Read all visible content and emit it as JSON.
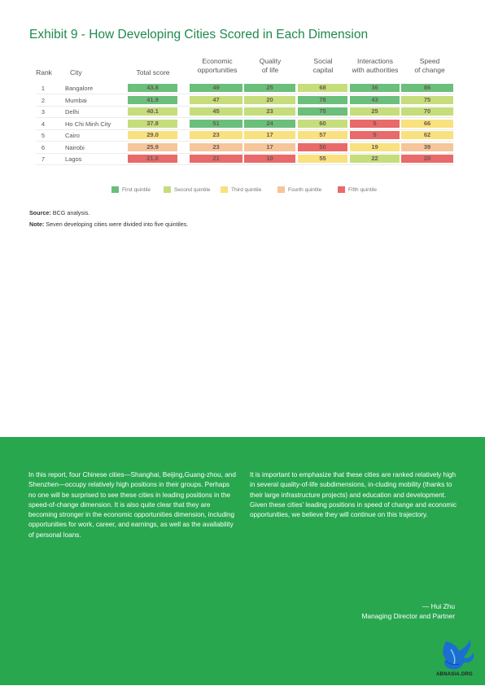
{
  "exhibit": {
    "title": "Exhibit 9 - How Developing Cities Scored in Each Dimension",
    "headers": {
      "rank": "Rank",
      "city": "City",
      "total": "Total score",
      "econ": "Economic\nopportunities",
      "quality": "Quality\nof life",
      "social": "Social\ncapital",
      "interactions": "Interactions\nwith authorities",
      "speed": "Speed\nof change"
    },
    "colors": {
      "q1": "#6abf7b",
      "q2": "#c6dd7c",
      "q3": "#f8e17e",
      "q4": "#f6c59a",
      "q5": "#e86a6a"
    },
    "rows": [
      {
        "rank": "1",
        "city": "Bangalore",
        "total": "43.8",
        "econ": "49",
        "quality": "25",
        "social": "68",
        "interactions": "36",
        "speed": "86",
        "q": {
          "total": "q1",
          "econ": "q1",
          "quality": "q1",
          "social": "q2",
          "interactions": "q1",
          "speed": "q1"
        }
      },
      {
        "rank": "2",
        "city": "Mumbai",
        "total": "41.9",
        "econ": "47",
        "quality": "20",
        "social": "78",
        "interactions": "43",
        "speed": "75",
        "q": {
          "total": "q1",
          "econ": "q2",
          "quality": "q2",
          "social": "q1",
          "interactions": "q1",
          "speed": "q2"
        }
      },
      {
        "rank": "3",
        "city": "Delhi",
        "total": "40.1",
        "econ": "45",
        "quality": "23",
        "social": "75",
        "interactions": "25",
        "speed": "70",
        "q": {
          "total": "q2",
          "econ": "q2",
          "quality": "q2",
          "social": "q1",
          "interactions": "q2",
          "speed": "q2"
        }
      },
      {
        "rank": "4",
        "city": "Ho Chi Minh City",
        "total": "37.8",
        "econ": "51",
        "quality": "24",
        "social": "60",
        "interactions": "5",
        "speed": "66",
        "q": {
          "total": "q2",
          "econ": "q1",
          "quality": "q1",
          "social": "q2",
          "interactions": "q5",
          "speed": "q3"
        }
      },
      {
        "rank": "5",
        "city": "Cairo",
        "total": "29.0",
        "econ": "23",
        "quality": "17",
        "social": "57",
        "interactions": "5",
        "speed": "62",
        "q": {
          "total": "q3",
          "econ": "q3",
          "quality": "q3",
          "social": "q3",
          "interactions": "q5",
          "speed": "q3"
        }
      },
      {
        "rank": "6",
        "city": "Nairobi",
        "total": "25.9",
        "econ": "23",
        "quality": "17",
        "social": "50",
        "interactions": "19",
        "speed": "39",
        "q": {
          "total": "q4",
          "econ": "q4",
          "quality": "q4",
          "social": "q5",
          "interactions": "q3",
          "speed": "q4"
        }
      },
      {
        "rank": "7",
        "city": "Lagos",
        "total": "21.0",
        "econ": "21",
        "quality": "10",
        "social": "55",
        "interactions": "22",
        "speed": "20",
        "q": {
          "total": "q5",
          "econ": "q5",
          "quality": "q5",
          "social": "q3",
          "interactions": "q2",
          "speed": "q5"
        }
      }
    ],
    "legend": [
      {
        "label": "First quintile",
        "q": "q1"
      },
      {
        "label": "Second quintile",
        "q": "q2"
      },
      {
        "label": "Third quintile",
        "q": "q3"
      },
      {
        "label": "Fourth quintile",
        "q": "q4"
      },
      {
        "label": "Fifth quintile",
        "q": "q5"
      }
    ],
    "source_label": "Source:",
    "source_text": " BCG analysis.",
    "note_label": "Note:",
    "note_text": " Seven developing cities were divided into five quintiles."
  },
  "quote": {
    "left": "In this report, four Chinese cities—Shanghai, Beijing,Guang-zhou, and Shenzhen—occupy relatively high positions in their groups. Perhaps no one will be surprised to see these cities in leading positions in the speed-of-change dimension. It is also quite clear that they are becoming stronger in the economic opportunities dimension, including opportunities for work, career, and earnings, as well as the availability of personal loans.",
    "right": "It is important to emphasize that these cities are ranked relatively high in several quality-of-life subdimensions, in-cluding mobility (thanks to their large infrastructure projects) and education and development. Given these cities’ leading positions in speed of change and economic opportunities, we believe they will continue on this trajectory.",
    "author": "— Hui Zhu",
    "role": "Managing Director and Partner"
  },
  "watermark": {
    "text": "ABNASIA.ORG"
  }
}
